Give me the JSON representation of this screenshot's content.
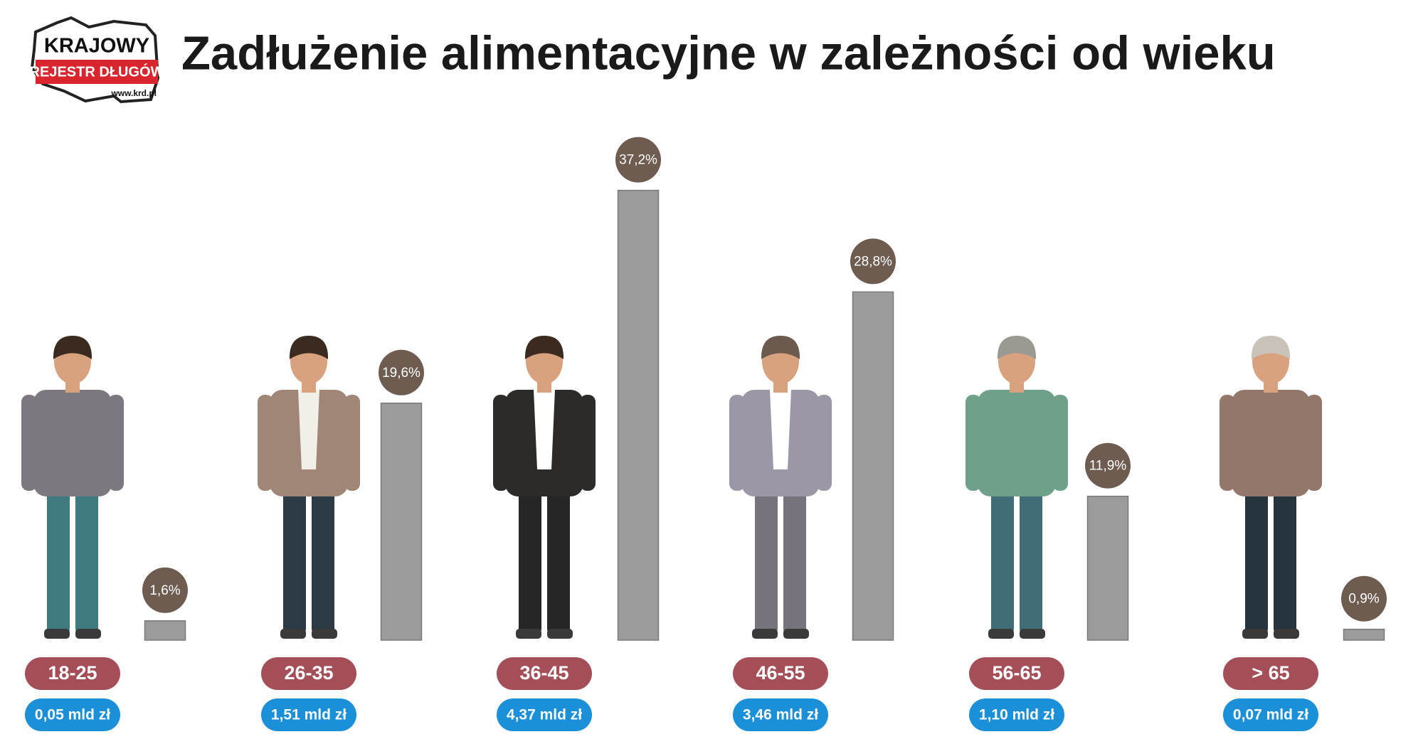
{
  "logo": {
    "line1": "KRAJOWY",
    "line2": "REJESTR DŁUGÓW",
    "url": "www.krd.pl"
  },
  "chart_data": {
    "type": "bar",
    "title": "Zadłużenie alimentacyjne w zależności od wieku",
    "categories": [
      "18-25",
      "26-35",
      "36-45",
      "46-55",
      "56-65",
      "> 65"
    ],
    "values": [
      1.6,
      19.6,
      37.2,
      28.8,
      11.9,
      0.9
    ],
    "value_labels": [
      "1,6%",
      "19,6%",
      "37,2%",
      "28,8%",
      "11,9%",
      "0,9%"
    ],
    "amount_labels": [
      "0,05 mld zł",
      "1,51 mld zł",
      "4,37 mld zł",
      "3,46 mld zł",
      "1,10 mld zł",
      "0,07 mld zł"
    ],
    "color": "#9b9b9b"
  }
}
